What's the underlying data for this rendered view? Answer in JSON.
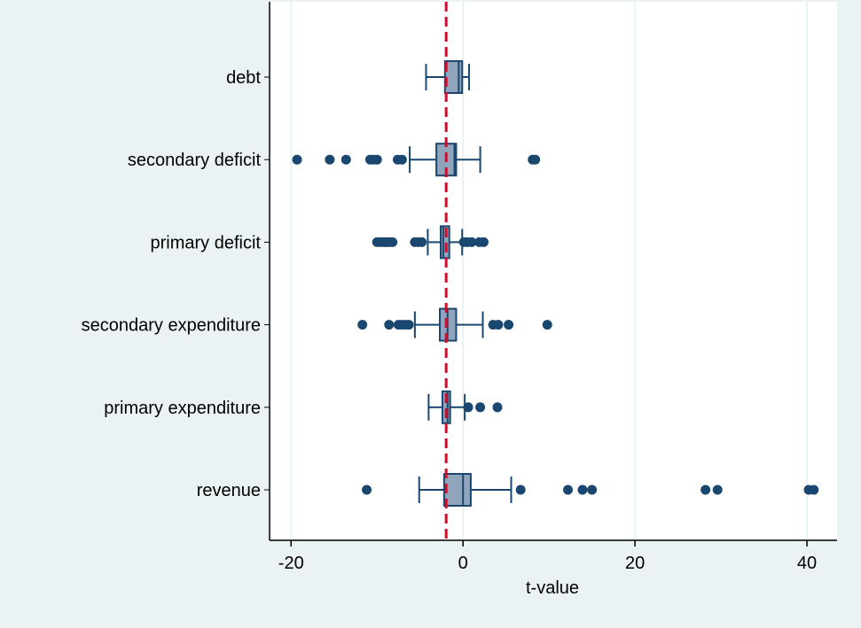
{
  "chart_data": {
    "type": "boxplot",
    "title": "",
    "xlabel": "t-value",
    "ylabel": "",
    "xlim": [
      -22.5,
      43.5
    ],
    "xticks": [
      -20,
      0,
      20,
      40
    ],
    "xtick_labels": [
      "-20",
      "0",
      "20",
      "40"
    ],
    "grid": true,
    "reference_line": {
      "x": -1.96,
      "style": "dashed",
      "color": "#c8102e"
    },
    "colors": {
      "box_fill": "#90a4bc",
      "box_stroke": "#1a476f",
      "whisker": "#1a476f",
      "outlier": "#1a476f",
      "gridline": "#eaf2f3",
      "plot_background": "#ffffff",
      "page_background": "#eaf2f3"
    },
    "categories": [
      "debt",
      "secondary deficit",
      "primary deficit",
      "secondary expenditure",
      "primary expenditure",
      "revenue"
    ],
    "boxes": [
      {
        "category": "debt",
        "whisker_low": -4.3,
        "q1": -2.1,
        "median": -0.5,
        "q3": -0.1,
        "whisker_high": 0.7,
        "outliers": []
      },
      {
        "category": "secondary deficit",
        "whisker_low": -6.2,
        "q1": -3.1,
        "median": -1.0,
        "q3": -0.8,
        "whisker_high": 2.0,
        "outliers": [
          -19.3,
          -15.5,
          -13.6,
          -10.8,
          -10.4,
          -10.0,
          -7.6,
          -7.1,
          8.1,
          8.4
        ]
      },
      {
        "category": "primary deficit",
        "whisker_low": -4.1,
        "q1": -2.6,
        "median": -2.3,
        "q3": -1.6,
        "whisker_high": -0.1,
        "outliers": [
          -10.0,
          -9.6,
          -9.2,
          -8.9,
          -8.6,
          -8.2,
          -5.6,
          -5.2,
          -4.8,
          0.1,
          0.5,
          1.0,
          1.9,
          2.4
        ]
      },
      {
        "category": "secondary expenditure",
        "whisker_low": -5.6,
        "q1": -2.7,
        "median": -1.8,
        "q3": -0.8,
        "whisker_high": 2.3,
        "outliers": [
          -11.7,
          -8.6,
          -7.5,
          -7.1,
          -6.7,
          -6.3,
          3.5,
          4.1,
          5.3,
          9.8
        ]
      },
      {
        "category": "primary expenditure",
        "whisker_low": -4.0,
        "q1": -2.4,
        "median": -1.8,
        "q3": -1.5,
        "whisker_high": 0.2,
        "outliers": [
          0.6,
          2.0,
          4.0
        ]
      },
      {
        "category": "revenue",
        "whisker_low": -5.1,
        "q1": -2.2,
        "median": 0.0,
        "q3": 0.9,
        "whisker_high": 5.6,
        "outliers": [
          -11.2,
          6.7,
          12.2,
          13.9,
          15.0,
          28.2,
          29.6,
          40.2,
          40.8
        ]
      }
    ]
  }
}
